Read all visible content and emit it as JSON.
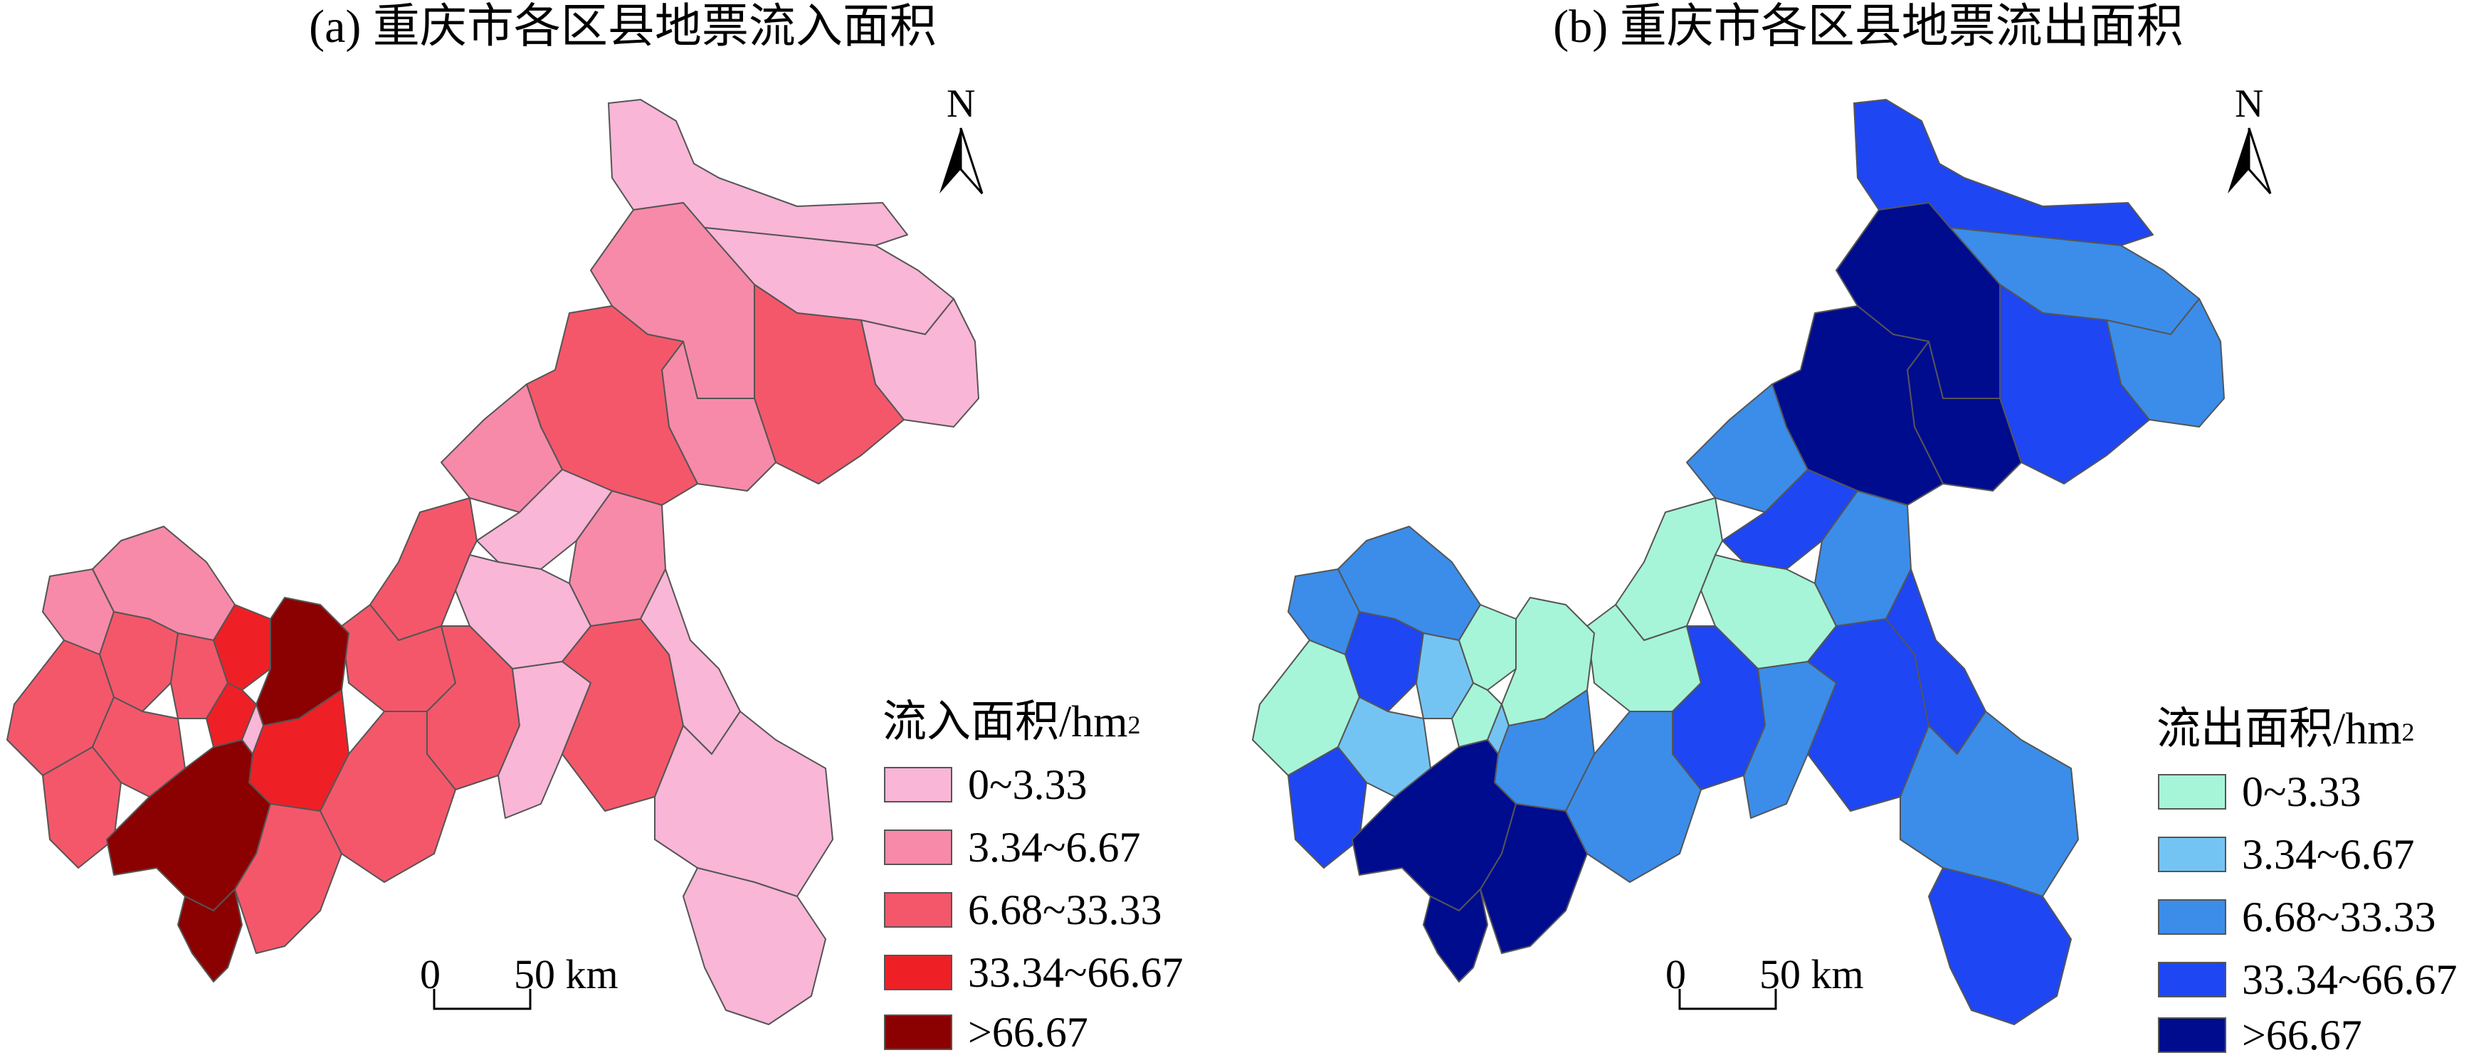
{
  "panels": [
    {
      "id": "a",
      "title": "(a) 重庆市各区县地票流入面积",
      "north": "N",
      "legend_title": "流入面积/hm",
      "legend_sup": "2",
      "classes": [
        {
          "label": "0~3.33",
          "color": "#f9b6d7"
        },
        {
          "label": "3.34~6.67",
          "color": "#f78aa9"
        },
        {
          "label": "6.68~33.33",
          "color": "#f4576a"
        },
        {
          "label": "33.34~66.67",
          "color": "#ee2026"
        },
        {
          "label": ">66.67",
          "color": "#8b0000"
        }
      ],
      "scale": {
        "zero": "0",
        "distance": "50 km"
      }
    },
    {
      "id": "b",
      "title": "(b) 重庆市各区县地票流出面积",
      "north": "N",
      "legend_title": "流出面积/hm",
      "legend_sup": "2",
      "classes": [
        {
          "label": "0~3.33",
          "color": "#a6f5d8"
        },
        {
          "label": "3.34~6.67",
          "color": "#74c4f3"
        },
        {
          "label": "6.68~33.33",
          "color": "#3b8de9"
        },
        {
          "label": "33.34~66.67",
          "color": "#1e46f2"
        },
        {
          "label": ">66.67",
          "color": "#000c8e"
        }
      ],
      "scale": {
        "zero": "0",
        "distance": "50 km"
      }
    }
  ]
}
